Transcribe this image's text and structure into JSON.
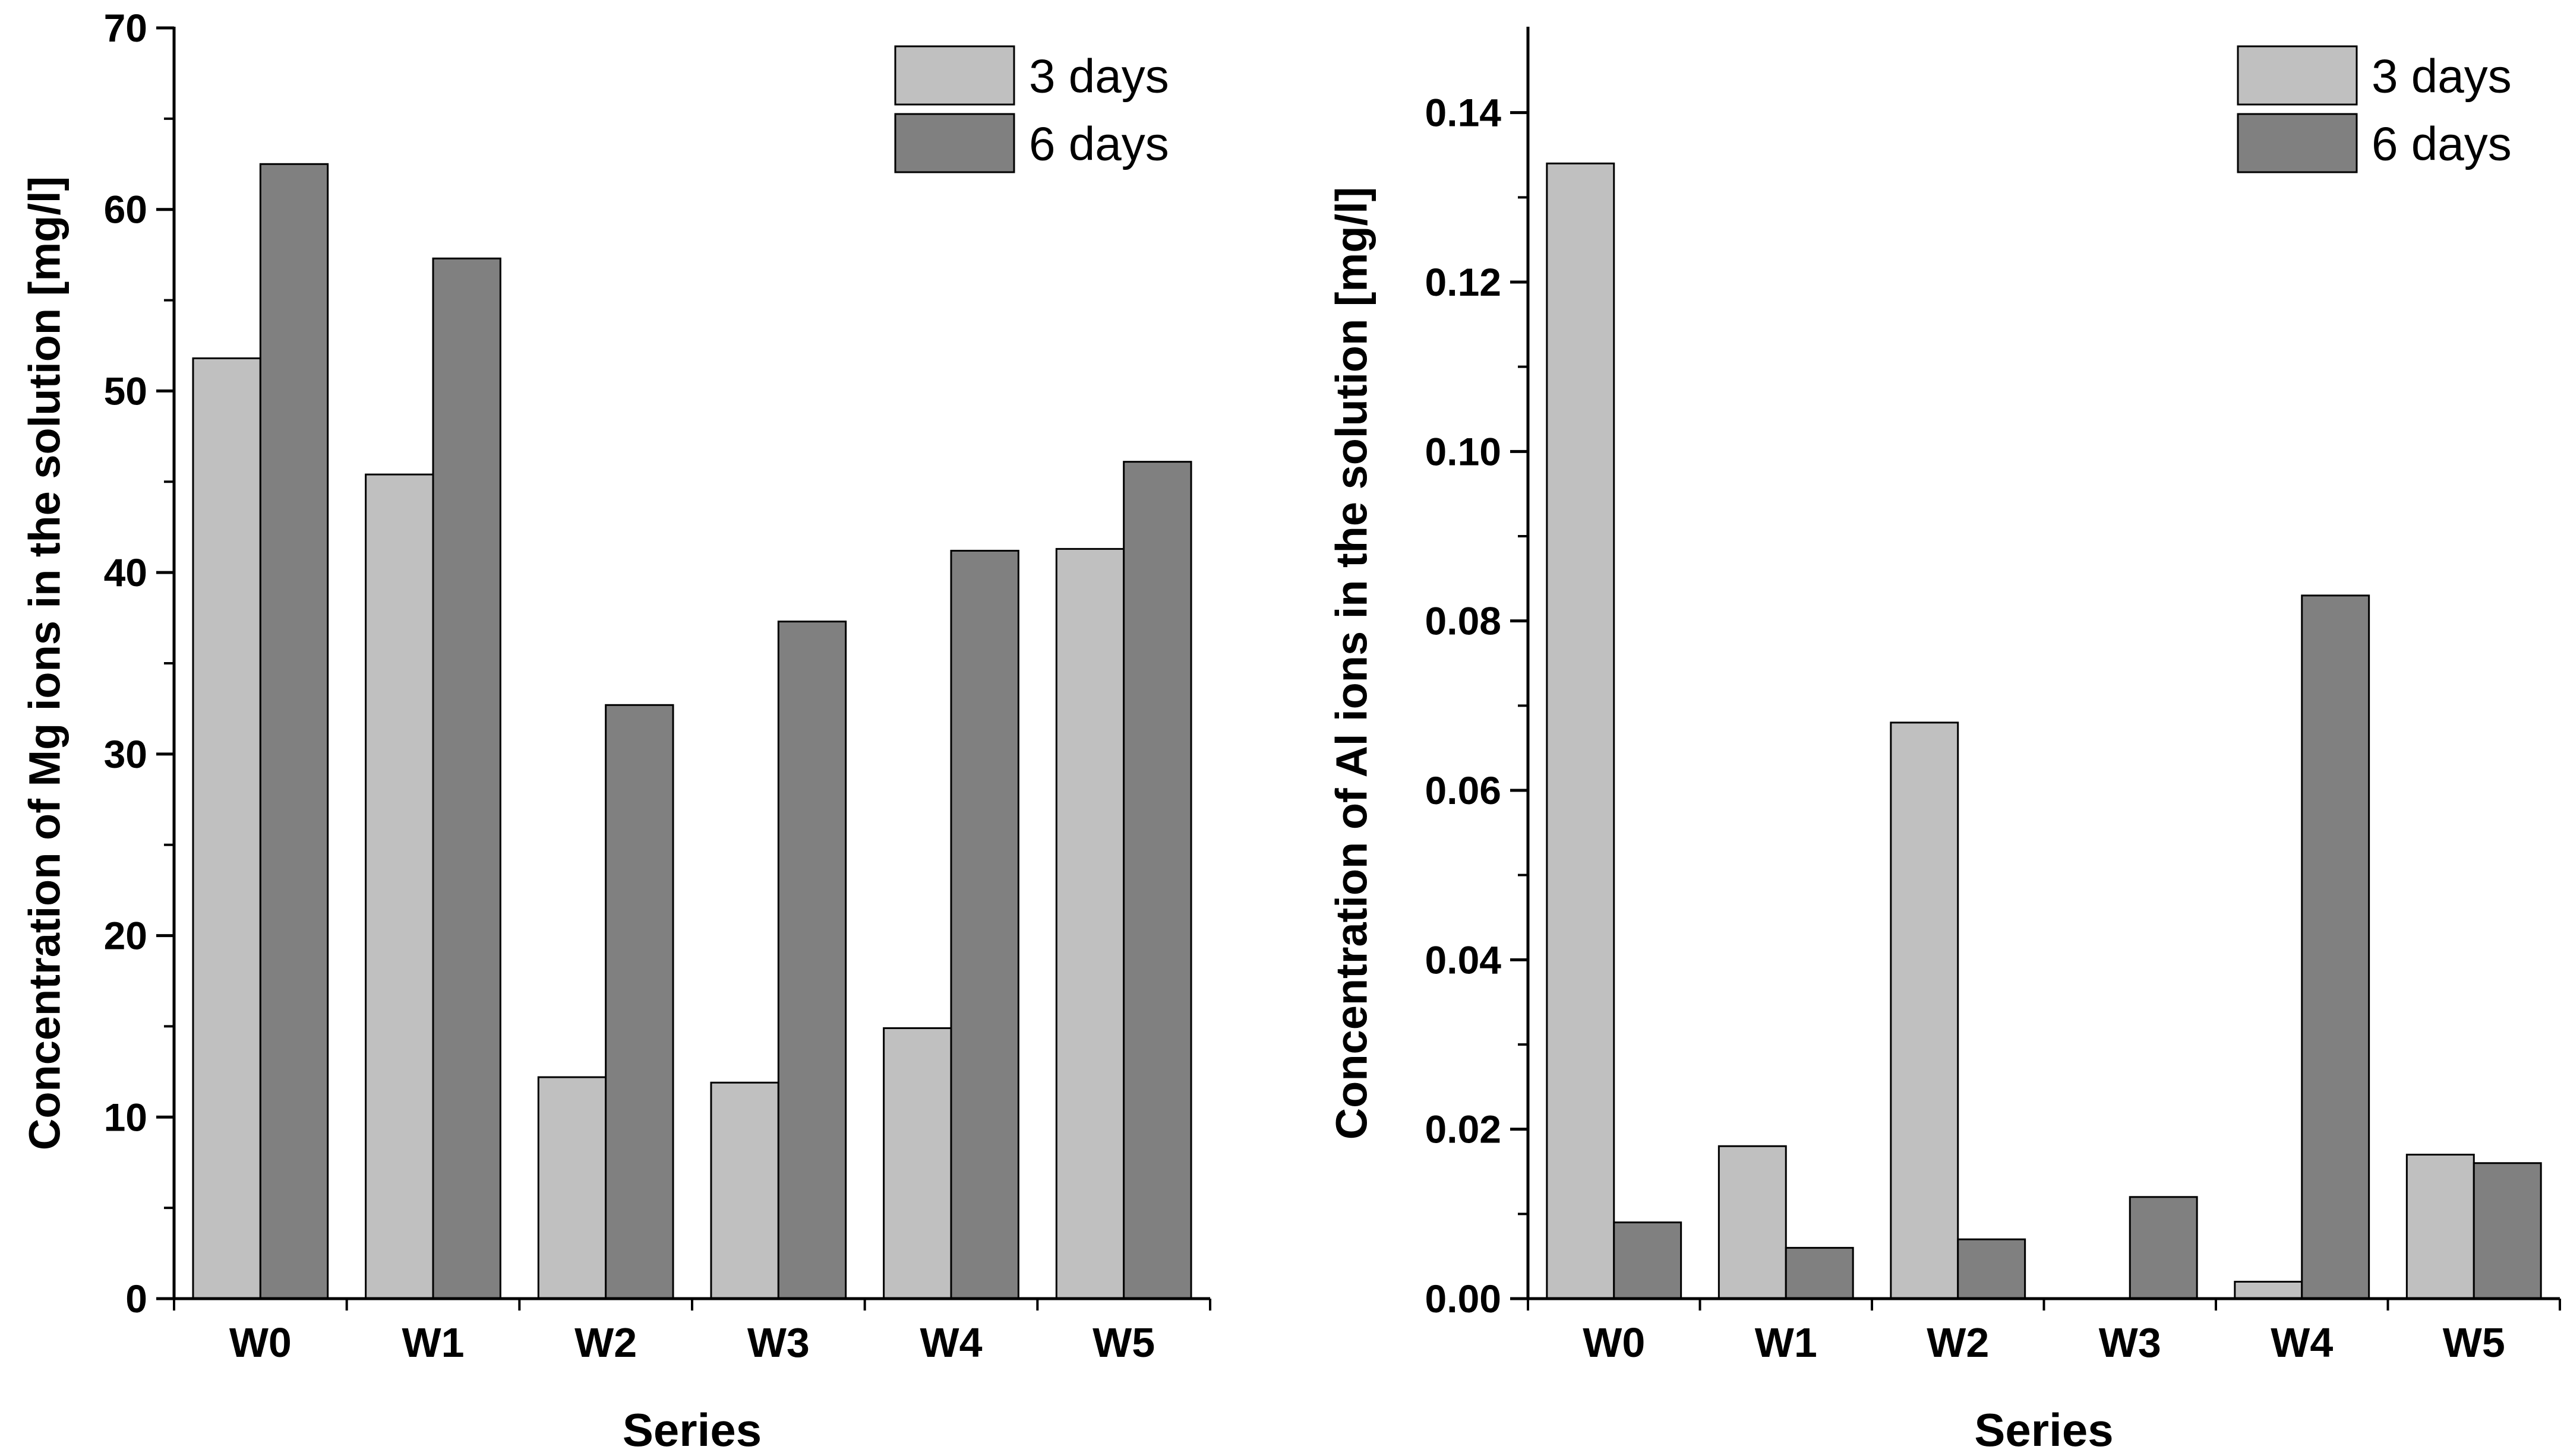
{
  "chart_data": [
    {
      "type": "bar",
      "title": "",
      "xlabel": "Series",
      "ylabel": "Concentration of Mg ions in the solution [mg/l]",
      "categories": [
        "W0",
        "W1",
        "W2",
        "W3",
        "W4",
        "W5"
      ],
      "series": [
        {
          "name": "3 days",
          "color": "#c0c0c0",
          "values": [
            51.8,
            45.4,
            12.2,
            11.9,
            14.9,
            41.3
          ]
        },
        {
          "name": "6 days",
          "color": "#808080",
          "values": [
            62.5,
            57.3,
            32.7,
            37.3,
            41.2,
            46.1
          ]
        }
      ],
      "ylim": [
        0,
        70
      ],
      "yticks": [
        0,
        10,
        20,
        30,
        40,
        50,
        60,
        70
      ],
      "ytick_labels": [
        "0",
        "10",
        "20",
        "30",
        "40",
        "50",
        "60",
        "70"
      ],
      "grid": false,
      "legend_position": "top-right"
    },
    {
      "type": "bar",
      "title": "",
      "xlabel": "Series",
      "ylabel": "Concentration of Al ions in the solution [mg/l]",
      "categories": [
        "W0",
        "W1",
        "W2",
        "W3",
        "W4",
        "W5"
      ],
      "series": [
        {
          "name": "3 days",
          "color": "#c0c0c0",
          "values": [
            0.134,
            0.018,
            0.068,
            0.0,
            0.002,
            0.017
          ]
        },
        {
          "name": "6 days",
          "color": "#808080",
          "values": [
            0.009,
            0.006,
            0.007,
            0.012,
            0.083,
            0.016
          ]
        }
      ],
      "ylim": [
        0,
        0.15
      ],
      "yticks": [
        0,
        0.02,
        0.04,
        0.06,
        0.08,
        0.1,
        0.12,
        0.14
      ],
      "ytick_labels": [
        "0.00",
        "0.02",
        "0.04",
        "0.06",
        "0.08",
        "0.10",
        "0.12",
        "0.14"
      ],
      "grid": false,
      "legend_position": "top-right"
    }
  ]
}
